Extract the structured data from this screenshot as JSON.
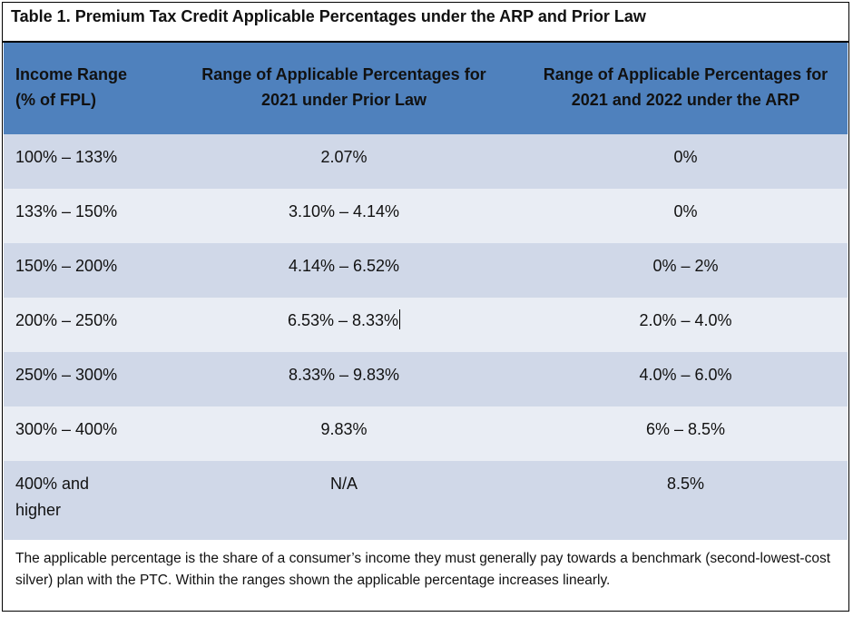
{
  "table": {
    "title": "Table 1. Premium Tax Credit Applicable Percentages under the ARP and Prior Law",
    "headers": {
      "income_line1": "Income Range",
      "income_line2": "(% of FPL)",
      "prior_line1": "Range of Applicable Percentages for",
      "prior_line2": "2021 under Prior Law",
      "arp_line1": "Range of Applicable Percentages for",
      "arp_line2": "2021 and 2022 under the ARP"
    },
    "rows": [
      {
        "income": "100% – 133%",
        "prior": "2.07%",
        "arp": "0%"
      },
      {
        "income": "133% – 150%",
        "prior": "3.10% – 4.14%",
        "arp": "0%"
      },
      {
        "income": "150% – 200%",
        "prior": "4.14% – 6.52%",
        "arp": "0% – 2%"
      },
      {
        "income": "200% – 250%",
        "prior": "6.53% – 8.33%",
        "arp": "2.0% – 4.0%"
      },
      {
        "income": "250% – 300%",
        "prior": "8.33% – 9.83%",
        "arp": "4.0% – 6.0%"
      },
      {
        "income": "300% – 400%",
        "prior": "9.83%",
        "arp": "6% – 8.5%"
      },
      {
        "income_line1": "400% and",
        "income_line2": "higher",
        "prior": "N/A",
        "arp": "8.5%"
      }
    ],
    "footnote": "The applicable percentage is the share of a consumer’s income they must generally pay towards a benchmark (second-lowest-cost silver) plan with the PTC. Within the ranges shown the applicable percentage increases linearly."
  }
}
